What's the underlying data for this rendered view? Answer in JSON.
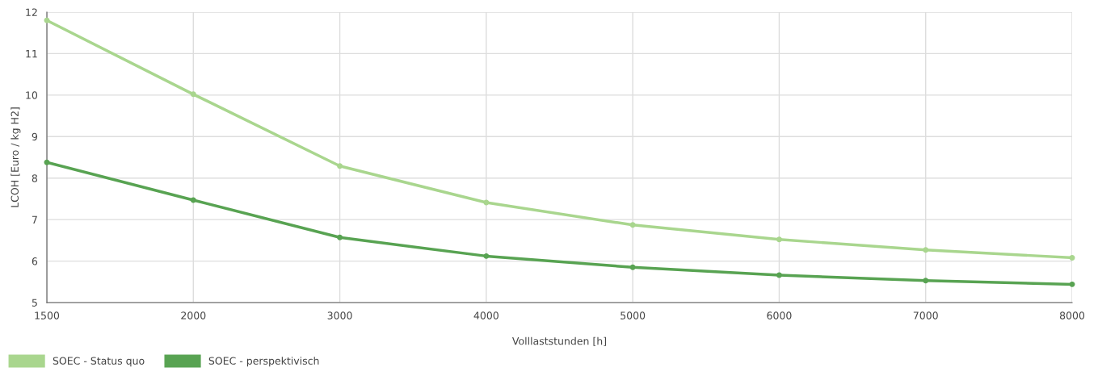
{
  "chart_data": {
    "type": "line",
    "xlabel": "Volllaststunden [h]",
    "ylabel": "LCOH [Euro / kg H2]",
    "categories": [
      "1500",
      "2000",
      "3000",
      "4000",
      "5000",
      "6000",
      "7000",
      "8000"
    ],
    "series": [
      {
        "name": "SOEC - Status quo",
        "color": "#a9d68e",
        "values": [
          11.8,
          10.02,
          8.29,
          7.41,
          6.87,
          6.52,
          6.27,
          6.08
        ]
      },
      {
        "name": "SOEC - perspektivisch",
        "color": "#58a352",
        "values": [
          8.38,
          7.47,
          6.57,
          6.12,
          5.85,
          5.66,
          5.53,
          5.44
        ]
      }
    ],
    "ylim": [
      5,
      12
    ],
    "yticks": [
      5,
      6,
      7,
      8,
      9,
      10,
      11,
      12
    ],
    "grid": true,
    "legend": "bottom left",
    "marker": "circle",
    "line_style": "solid"
  }
}
